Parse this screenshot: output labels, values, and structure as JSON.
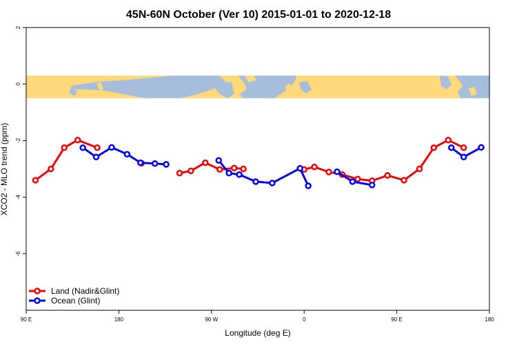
{
  "chart_data": {
    "type": "line",
    "title": "45N-60N October (Ver 10)   2015-01-01 to 2020-12-18",
    "xlabel": "Longitude (deg E)",
    "ylabel": "XCO2 - MLO trend (ppm)",
    "xlim": [
      90,
      540
    ],
    "ylim": [
      -8,
      2
    ],
    "xticks": [
      {
        "value": 90,
        "label": "90 E"
      },
      {
        "value": 180,
        "label": "180"
      },
      {
        "value": 270,
        "label": "90 W"
      },
      {
        "value": 360,
        "label": "0"
      },
      {
        "value": 450,
        "label": "90 E"
      },
      {
        "value": 540,
        "label": "180"
      }
    ],
    "yticks": [
      {
        "value": 2,
        "label": "2"
      },
      {
        "value": 0,
        "label": "0"
      },
      {
        "value": -2,
        "label": "-2"
      },
      {
        "value": -4,
        "label": "-4"
      },
      {
        "value": -6,
        "label": "-6"
      }
    ],
    "map_band": {
      "ymin": -0.5,
      "ymax": 0.3,
      "land_color": "#ffd97a",
      "ocean_color": "#a6bddb"
    },
    "legend_position": "bottom-left",
    "series": [
      {
        "name": "Land (Nadir&Glint)",
        "color": "#ee0000",
        "segments": [
          [
            [
              99,
              -3.4
            ],
            [
              114,
              -3.0
            ],
            [
              127,
              -2.25
            ],
            [
              140,
              -1.98
            ],
            [
              159,
              -2.25
            ]
          ],
          [
            [
              202,
              -2.8
            ]
          ],
          [
            [
              239,
              -3.15
            ],
            [
              250,
              -3.07
            ],
            [
              264,
              -2.78
            ],
            [
              278,
              -3.02
            ],
            [
              292,
              -2.97
            ],
            [
              301,
              -3.0
            ]
          ],
          [
            [
              360,
              -3.02
            ],
            [
              370,
              -2.93
            ],
            [
              384,
              -3.11
            ],
            [
              397,
              -3.2
            ],
            [
              412,
              -3.36
            ],
            [
              426,
              -3.42
            ],
            [
              441,
              -3.23
            ],
            [
              457,
              -3.4
            ],
            [
              472,
              -3.0
            ],
            [
              486,
              -2.25
            ],
            [
              500,
              -1.98
            ],
            [
              515,
              -2.25
            ]
          ]
        ]
      },
      {
        "name": "Ocean (Glint)",
        "color": "#0000ee",
        "segments": [
          [
            [
              145,
              -2.25
            ],
            [
              158,
              -2.58
            ],
            [
              173,
              -2.24
            ],
            [
              188,
              -2.48
            ],
            [
              201,
              -2.78
            ],
            [
              215,
              -2.81
            ],
            [
              226,
              -2.84
            ]
          ],
          [
            [
              277,
              -2.7
            ],
            [
              287,
              -3.15
            ],
            [
              297,
              -3.2
            ],
            [
              313,
              -3.45
            ],
            [
              329,
              -3.5
            ],
            [
              356,
              -2.98
            ],
            [
              364,
              -3.6
            ]
          ],
          [
            [
              392,
              -3.1
            ],
            [
              407,
              -3.45
            ],
            [
              426,
              -3.57
            ]
          ],
          [
            [
              503,
              -2.25
            ],
            [
              515,
              -2.58
            ],
            [
              532,
              -2.24
            ]
          ]
        ]
      }
    ]
  }
}
